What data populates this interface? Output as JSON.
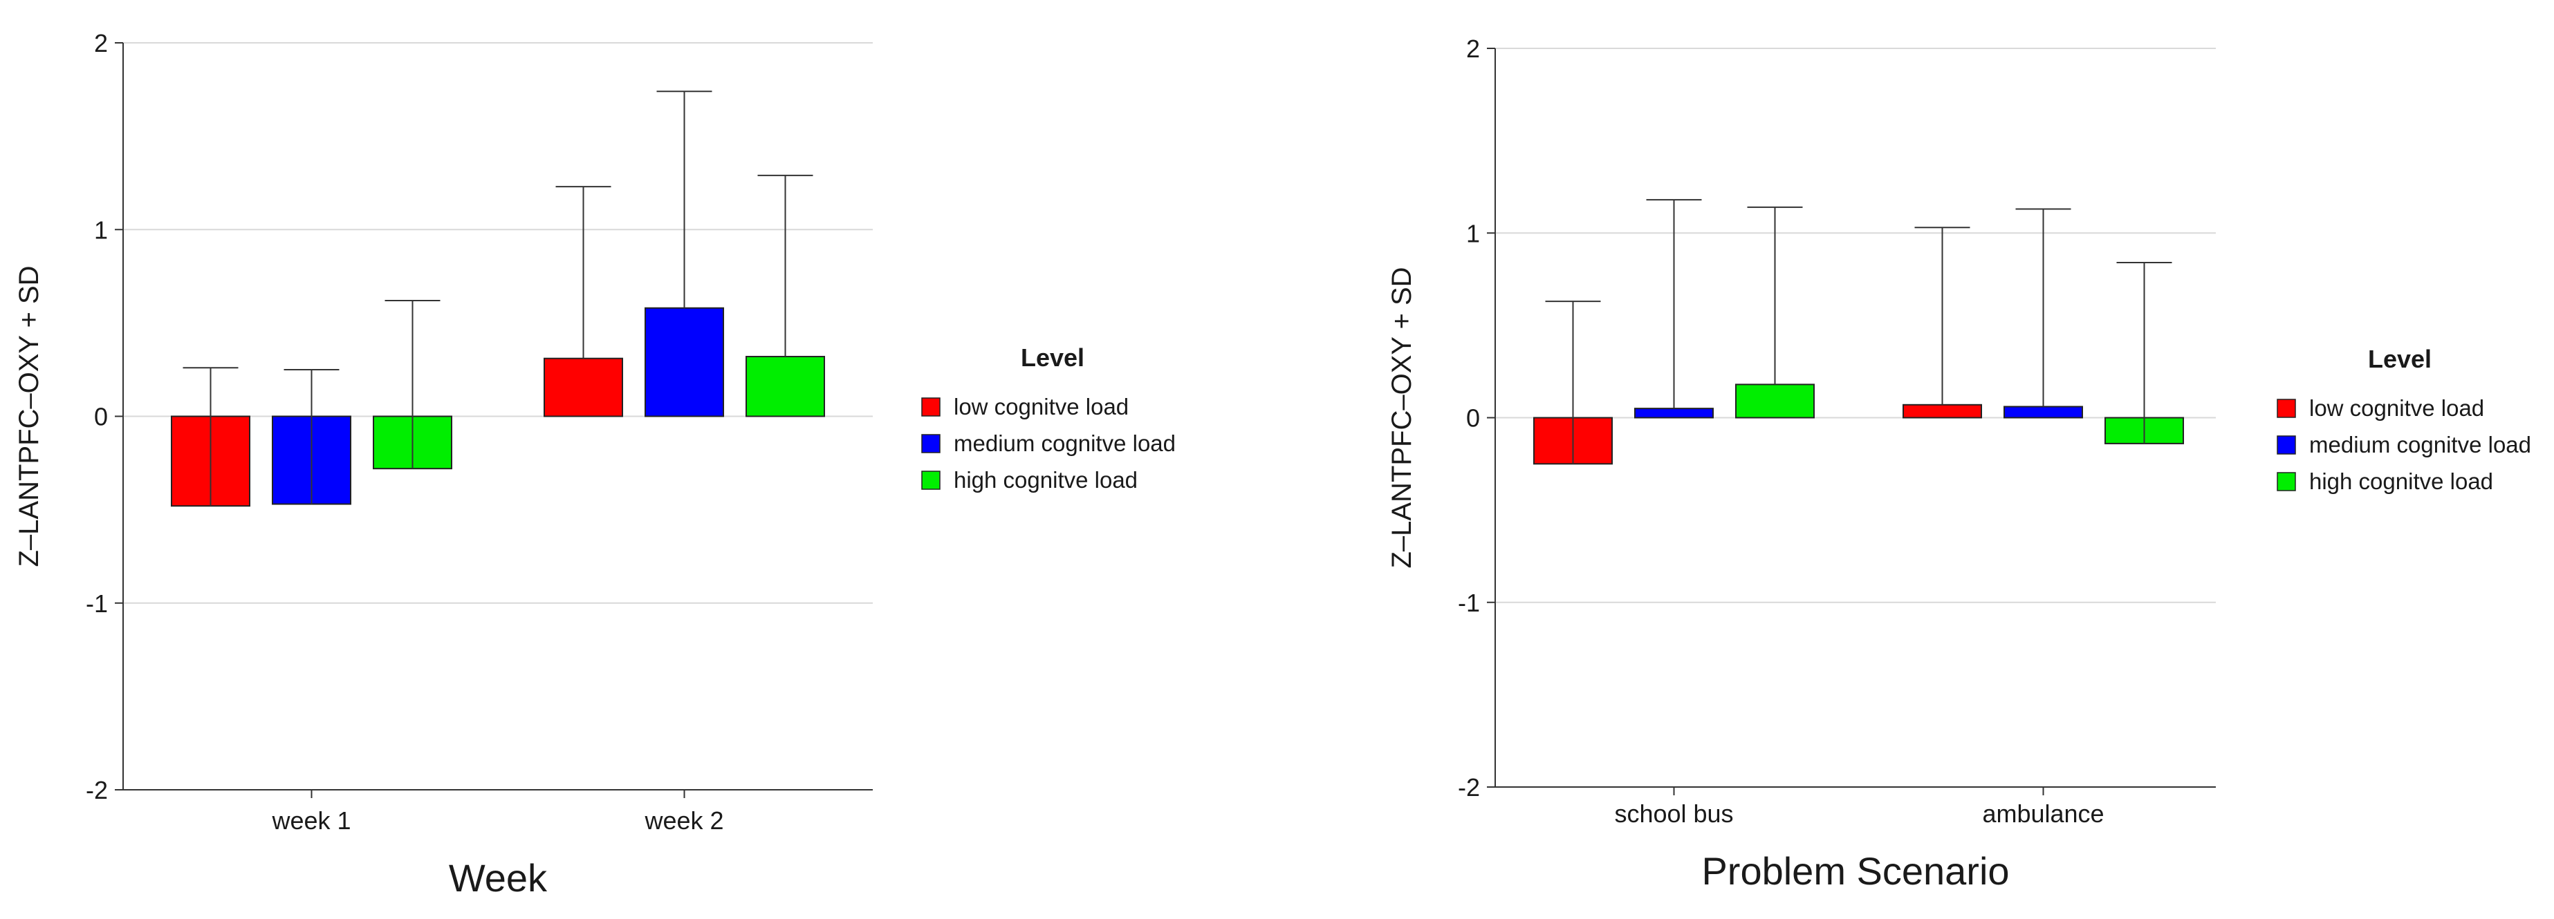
{
  "chart_data": [
    {
      "type": "bar",
      "xlabel": "Week",
      "ylabel": "Z–LANTPFC–OXY + SD",
      "ylim": [
        -2,
        2
      ],
      "yticks": [
        "-2",
        "-1",
        "0",
        "1",
        "2"
      ],
      "grid": true,
      "categories": [
        "week 1",
        "week 2"
      ],
      "series": [
        {
          "name": "low cognitve load",
          "color": "#ff0000",
          "values": [
            -0.48,
            0.31
          ],
          "sd": [
            0.74,
            0.92
          ]
        },
        {
          "name": "medium cognitve load",
          "color": "#0000ff",
          "values": [
            -0.47,
            0.58
          ],
          "sd": [
            0.72,
            1.16
          ]
        },
        {
          "name": "high cognitve load",
          "color": "#00ee00",
          "values": [
            -0.28,
            0.32
          ],
          "sd": [
            0.9,
            0.97
          ]
        }
      ],
      "legend": {
        "title": "Level",
        "position": "right"
      }
    },
    {
      "type": "bar",
      "xlabel": "Problem Scenario",
      "ylabel": "Z–LANTPFC–OXY + SD",
      "ylim": [
        -2,
        2
      ],
      "yticks": [
        "-2",
        "-1",
        "0",
        "1",
        "2"
      ],
      "grid": true,
      "categories": [
        "school bus",
        "ambulance"
      ],
      "series": [
        {
          "name": "low cognitve load",
          "color": "#ff0000",
          "values": [
            -0.25,
            0.07
          ],
          "sd": [
            0.88,
            0.96
          ]
        },
        {
          "name": "medium cognitve load",
          "color": "#0000ff",
          "values": [
            0.05,
            0.06
          ],
          "sd": [
            1.13,
            1.07
          ]
        },
        {
          "name": "high cognitve load",
          "color": "#00ee00",
          "values": [
            0.18,
            -0.14
          ],
          "sd": [
            0.96,
            0.98
          ]
        }
      ],
      "legend": {
        "title": "Level",
        "position": "right"
      }
    }
  ]
}
